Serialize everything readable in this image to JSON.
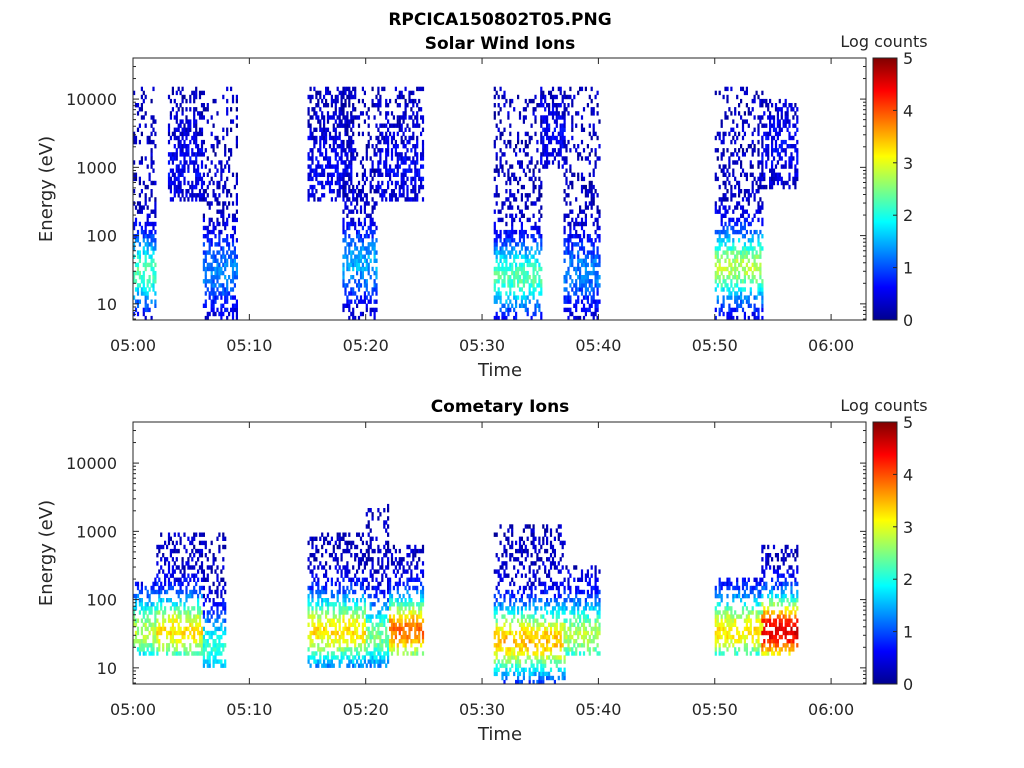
{
  "figure_title": "RPCICA150802T05.PNG",
  "colormap": [
    "#00008f",
    "#0000ff",
    "#0080ff",
    "#00ffff",
    "#80ff80",
    "#ffff00",
    "#ff8000",
    "#ff0000",
    "#800000"
  ],
  "chart_data": [
    {
      "type": "heatmap",
      "title": "Solar Wind Ions",
      "xlabel": "Time",
      "ylabel": "Energy (eV)",
      "y_scale": "log",
      "ylim": [
        5.8,
        40000
      ],
      "xlim": [
        "05:00",
        "06:03"
      ],
      "x_ticks": [
        "05:00",
        "05:10",
        "05:20",
        "05:30",
        "05:40",
        "05:50",
        "06:00"
      ],
      "y_ticks": [
        "10",
        "100",
        "1000",
        "10000"
      ],
      "colorbar": {
        "label": "Log counts",
        "range": [
          0,
          5
        ],
        "ticks": [
          "0",
          "1",
          "2",
          "3",
          "4",
          "5"
        ]
      },
      "bursts": [
        {
          "start": "05:00",
          "end": "05:02",
          "min_energy": 6,
          "max_energy": 15000,
          "peak_energy": 30,
          "peak_log_counts": 2.0
        },
        {
          "start": "05:03",
          "end": "05:06",
          "min_energy": 300,
          "max_energy": 15000,
          "peak_energy": 1000,
          "peak_log_counts": 0.3
        },
        {
          "start": "05:06",
          "end": "05:09",
          "min_energy": 6,
          "max_energy": 15000,
          "peak_energy": 30,
          "peak_log_counts": 1.0
        },
        {
          "start": "05:15",
          "end": "05:19",
          "min_energy": 300,
          "max_energy": 15000,
          "peak_energy": 1000,
          "peak_log_counts": 0.3
        },
        {
          "start": "05:18",
          "end": "05:21",
          "min_energy": 6,
          "max_energy": 15000,
          "peak_energy": 40,
          "peak_log_counts": 1.2
        },
        {
          "start": "05:21",
          "end": "05:25",
          "min_energy": 300,
          "max_energy": 15000,
          "peak_energy": 1000,
          "peak_log_counts": 0.3
        },
        {
          "start": "05:31",
          "end": "05:35",
          "min_energy": 6,
          "max_energy": 15000,
          "peak_energy": 25,
          "peak_log_counts": 2.0
        },
        {
          "start": "05:35",
          "end": "05:37",
          "min_energy": 1000,
          "max_energy": 15000,
          "peak_energy": 3000,
          "peak_log_counts": 0.3
        },
        {
          "start": "05:37",
          "end": "05:40",
          "min_energy": 6,
          "max_energy": 15000,
          "peak_energy": 30,
          "peak_log_counts": 1.0
        },
        {
          "start": "05:50",
          "end": "05:54",
          "min_energy": 6,
          "max_energy": 15000,
          "peak_energy": 35,
          "peak_log_counts": 2.5
        },
        {
          "start": "05:54",
          "end": "05:57",
          "min_energy": 500,
          "max_energy": 10000,
          "peak_energy": 2000,
          "peak_log_counts": 0.3
        }
      ]
    },
    {
      "type": "heatmap",
      "title": "Cometary Ions",
      "xlabel": "Time",
      "ylabel": "Energy (eV)",
      "y_scale": "log",
      "ylim": [
        5.8,
        40000
      ],
      "xlim": [
        "05:00",
        "06:03"
      ],
      "x_ticks": [
        "05:00",
        "05:10",
        "05:20",
        "05:30",
        "05:40",
        "05:50",
        "06:00"
      ],
      "y_ticks": [
        "10",
        "100",
        "1000",
        "10000"
      ],
      "colorbar": {
        "label": "Log counts",
        "range": [
          0,
          5
        ],
        "ticks": [
          "0",
          "1",
          "2",
          "3",
          "4",
          "5"
        ]
      },
      "bursts": [
        {
          "start": "05:00",
          "end": "05:02",
          "min_energy": 15,
          "max_energy": 200,
          "peak_energy": 35,
          "peak_log_counts": 2.5
        },
        {
          "start": "05:02",
          "end": "05:06",
          "min_energy": 15,
          "max_energy": 1000,
          "peak_energy": 35,
          "peak_log_counts": 3.0
        },
        {
          "start": "05:06",
          "end": "05:08",
          "min_energy": 10,
          "max_energy": 900,
          "peak_energy": 20,
          "peak_log_counts": 1.8
        },
        {
          "start": "05:15",
          "end": "05:20",
          "min_energy": 10,
          "max_energy": 1000,
          "peak_energy": 35,
          "peak_log_counts": 3.0
        },
        {
          "start": "05:20",
          "end": "05:22",
          "min_energy": 10,
          "max_energy": 2500,
          "peak_energy": 30,
          "peak_log_counts": 2.2
        },
        {
          "start": "05:22",
          "end": "05:25",
          "min_energy": 15,
          "max_energy": 600,
          "peak_energy": 35,
          "peak_log_counts": 3.6
        },
        {
          "start": "05:31",
          "end": "05:37",
          "min_energy": 6,
          "max_energy": 1300,
          "peak_energy": 25,
          "peak_log_counts": 3.2
        },
        {
          "start": "05:37",
          "end": "05:40",
          "min_energy": 15,
          "max_energy": 300,
          "peak_energy": 30,
          "peak_log_counts": 2.5
        },
        {
          "start": "05:50",
          "end": "05:54",
          "min_energy": 15,
          "max_energy": 200,
          "peak_energy": 35,
          "peak_log_counts": 3.0
        },
        {
          "start": "05:54",
          "end": "05:57",
          "min_energy": 15,
          "max_energy": 600,
          "peak_energy": 35,
          "peak_log_counts": 4.3
        }
      ]
    }
  ]
}
